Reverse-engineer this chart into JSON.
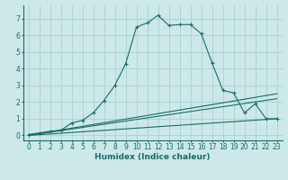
{
  "xlabel": "Humidex (Indice chaleur)",
  "x_ticks": [
    0,
    1,
    2,
    3,
    4,
    5,
    6,
    7,
    8,
    9,
    10,
    11,
    12,
    13,
    14,
    15,
    16,
    17,
    18,
    19,
    20,
    21,
    22,
    23
  ],
  "xlim": [
    -0.5,
    23.5
  ],
  "ylim": [
    -0.3,
    7.8
  ],
  "yticks": [
    0,
    1,
    2,
    3,
    4,
    5,
    6,
    7
  ],
  "bg_color": "#cce8e8",
  "grid_color": "#aad0d0",
  "line_color": "#1a6b6b",
  "main_curve_x": [
    0,
    1,
    2,
    3,
    4,
    5,
    6,
    7,
    8,
    9,
    10,
    11,
    12,
    13,
    14,
    15,
    16,
    17,
    18,
    19,
    20,
    21,
    22,
    23
  ],
  "main_curve_y": [
    0.05,
    0.15,
    0.25,
    0.3,
    0.75,
    0.9,
    1.35,
    2.1,
    3.0,
    4.3,
    6.5,
    6.75,
    7.2,
    6.6,
    6.65,
    6.65,
    6.1,
    4.35,
    2.7,
    2.55,
    1.35,
    1.9,
    1.0,
    1.0
  ],
  "line1_x": [
    0,
    23
  ],
  "line1_y": [
    0.0,
    2.5
  ],
  "line2_x": [
    0,
    23
  ],
  "line2_y": [
    0.0,
    2.2
  ],
  "line3_x": [
    0,
    23
  ],
  "line3_y": [
    0.0,
    1.0
  ]
}
